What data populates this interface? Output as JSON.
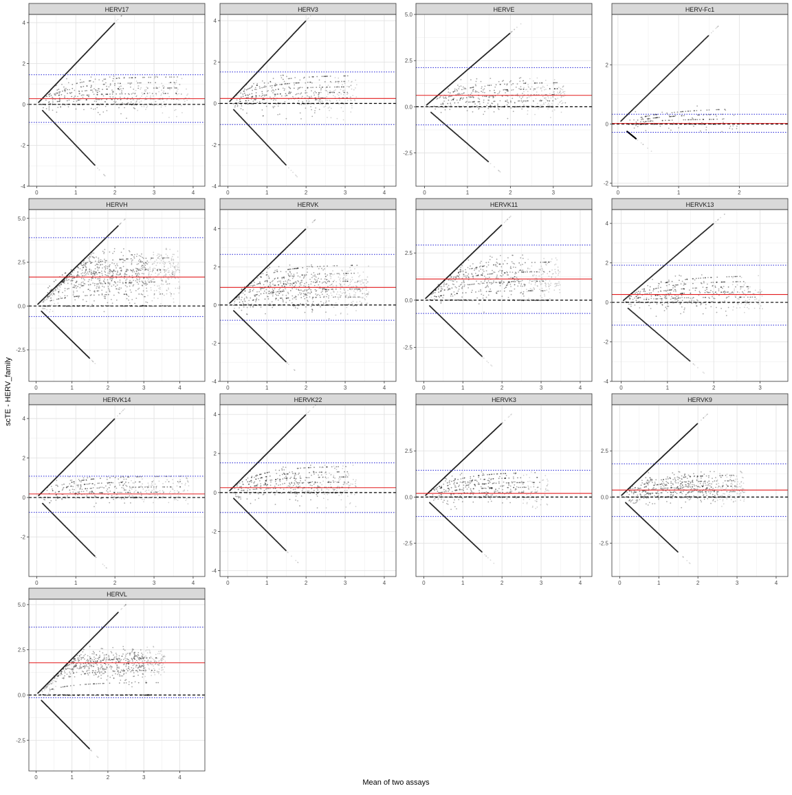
{
  "chart_data": {
    "type": "scatter",
    "xlabel": "Mean of two assays",
    "ylabel": "scTE - HERV_family",
    "colors": {
      "points": "#000000",
      "mean_line": "#e31a1c",
      "limits_line": "#1f1fd6",
      "zero_line": "#000000",
      "strip_fill": "#d9d9d9",
      "grid": "#ebebeb"
    },
    "grid": true,
    "panels": [
      {
        "title": "HERV17",
        "xlim": [
          -0.2,
          4.3
        ],
        "ylim": [
          -4.0,
          4.4
        ],
        "xticks": [
          0,
          1,
          2,
          3,
          4
        ],
        "yticks": [
          -4,
          -2,
          0,
          2,
          4
        ],
        "mean": 0.28,
        "upper_loa": 1.45,
        "lower_loa": -0.88,
        "diag_end": [
          2.0,
          4.0
        ],
        "neg_end": [
          1.5,
          -3.0
        ],
        "cloud": {
          "x0": 1.3,
          "y0": 0.4,
          "density": 1.0,
          "xmax": 3.9,
          "ymax": 1.4,
          "ymin": -0.7
        }
      },
      {
        "title": "HERV3",
        "xlim": [
          -0.2,
          4.3
        ],
        "ylim": [
          -4.0,
          4.3
        ],
        "xticks": [
          0,
          1,
          2,
          3,
          4
        ],
        "yticks": [
          -4,
          -2,
          0,
          2,
          4
        ],
        "mean": 0.24,
        "upper_loa": 1.52,
        "lower_loa": -1.02,
        "diag_end": [
          2.0,
          4.0
        ],
        "neg_end": [
          1.5,
          -3.0
        ],
        "cloud": {
          "x0": 1.2,
          "y0": 0.4,
          "density": 0.8,
          "xmax": 3.3,
          "ymax": 1.4,
          "ymin": -0.8
        }
      },
      {
        "title": "HERVE",
        "xlim": [
          -0.2,
          3.9
        ],
        "ylim": [
          -4.3,
          5.0
        ],
        "xticks": [
          0,
          1,
          2,
          3
        ],
        "yticks": [
          -2.5,
          0.0,
          2.5,
          5.0
        ],
        "mean": 0.62,
        "upper_loa": 2.12,
        "lower_loa": -0.98,
        "diag_end": [
          2.0,
          4.0
        ],
        "neg_end": [
          1.5,
          -3.0
        ],
        "cloud": {
          "x0": 1.1,
          "y0": 0.6,
          "density": 1.0,
          "xmax": 3.3,
          "ymax": 1.6,
          "ymin": -0.8
        }
      },
      {
        "title": "HERV-Fc1",
        "xlim": [
          -0.1,
          2.8
        ],
        "ylim": [
          -2.1,
          3.7
        ],
        "xticks": [
          0,
          1,
          2
        ],
        "yticks": [
          -2,
          0,
          2
        ],
        "mean": 0.02,
        "upper_loa": 0.33,
        "lower_loa": -0.28,
        "diag_end": [
          1.5,
          3.0
        ],
        "neg_end": [
          0.3,
          -0.5
        ],
        "cloud": {
          "x0": 0.8,
          "y0": 0.1,
          "density": 0.05,
          "xmax": 2.0,
          "ymax": 0.7,
          "ymin": -0.3
        }
      },
      {
        "title": "HERVH",
        "xlim": [
          -0.2,
          4.7
        ],
        "ylim": [
          -4.3,
          5.5
        ],
        "xticks": [
          0,
          1,
          2,
          3,
          4
        ],
        "yticks": [
          -2.5,
          0.0,
          2.5,
          5.0
        ],
        "mean": 1.65,
        "upper_loa": 3.9,
        "lower_loa": -0.6,
        "diag_end": [
          2.3,
          4.6
        ],
        "neg_end": [
          1.5,
          -3.0
        ],
        "cloud": {
          "x0": 1.9,
          "y0": 1.8,
          "density": 3.0,
          "xmax": 4.0,
          "ymax": 3.3,
          "ymin": -1.2
        }
      },
      {
        "title": "HERVK",
        "xlim": [
          -0.2,
          4.3
        ],
        "ylim": [
          -4.0,
          5.0
        ],
        "xticks": [
          0,
          1,
          2,
          3,
          4
        ],
        "yticks": [
          -4,
          -2,
          0,
          2,
          4
        ],
        "mean": 0.92,
        "upper_loa": 2.65,
        "lower_loa": -0.8,
        "diag_end": [
          2.0,
          4.0
        ],
        "neg_end": [
          1.5,
          -3.0
        ],
        "cloud": {
          "x0": 1.4,
          "y0": 0.9,
          "density": 2.0,
          "xmax": 3.6,
          "ymax": 2.1,
          "ymin": -0.9
        }
      },
      {
        "title": "HERVK11",
        "xlim": [
          -0.2,
          4.3
        ],
        "ylim": [
          -4.3,
          4.8
        ],
        "xticks": [
          0,
          1,
          2,
          3,
          4
        ],
        "yticks": [
          -2.5,
          0.0,
          2.5
        ],
        "mean": 1.12,
        "upper_loa": 2.92,
        "lower_loa": -0.7,
        "diag_end": [
          2.0,
          4.0
        ],
        "neg_end": [
          1.5,
          -3.0
        ],
        "cloud": {
          "x0": 1.4,
          "y0": 1.2,
          "density": 1.5,
          "xmax": 3.5,
          "ymax": 2.4,
          "ymin": -0.8
        }
      },
      {
        "title": "HERVK13",
        "xlim": [
          -0.2,
          3.6
        ],
        "ylim": [
          -4.0,
          4.7
        ],
        "xticks": [
          0,
          1,
          2,
          3
        ],
        "yticks": [
          -4,
          -2,
          0,
          2,
          4
        ],
        "mean": 0.4,
        "upper_loa": 1.88,
        "lower_loa": -1.15,
        "diag_end": [
          2.0,
          4.0
        ],
        "neg_end": [
          1.5,
          -3.0
        ],
        "cloud": {
          "x0": 1.2,
          "y0": 0.4,
          "density": 0.9,
          "xmax": 3.1,
          "ymax": 1.4,
          "ymin": -1.0
        }
      },
      {
        "title": "HERVK14",
        "xlim": [
          -0.2,
          4.3
        ],
        "ylim": [
          -4.0,
          4.7
        ],
        "xticks": [
          0,
          1,
          2,
          3,
          4
        ],
        "yticks": [
          -2,
          0,
          2,
          4
        ],
        "mean": 0.18,
        "upper_loa": 1.08,
        "lower_loa": -0.75,
        "diag_end": [
          2.0,
          4.0
        ],
        "neg_end": [
          1.5,
          -3.0
        ],
        "cloud": {
          "x0": 1.2,
          "y0": 0.4,
          "density": 0.8,
          "xmax": 3.9,
          "ymax": 1.1,
          "ymin": -0.5
        }
      },
      {
        "title": "HERVK22",
        "xlim": [
          -0.2,
          4.3
        ],
        "ylim": [
          -4.3,
          4.5
        ],
        "xticks": [
          0,
          1,
          2,
          3,
          4
        ],
        "yticks": [
          -4,
          -2,
          0,
          2,
          4
        ],
        "mean": 0.25,
        "upper_loa": 1.52,
        "lower_loa": -1.02,
        "diag_end": [
          2.0,
          4.0
        ],
        "neg_end": [
          1.5,
          -3.0
        ],
        "cloud": {
          "x0": 1.2,
          "y0": 0.4,
          "density": 0.9,
          "xmax": 3.3,
          "ymax": 1.4,
          "ymin": -0.8
        }
      },
      {
        "title": "HERVK3",
        "xlim": [
          -0.2,
          4.3
        ],
        "ylim": [
          -4.3,
          5.0
        ],
        "xticks": [
          0,
          1,
          2,
          3,
          4
        ],
        "yticks": [
          -2.5,
          0.0,
          2.5
        ],
        "mean": 0.2,
        "upper_loa": 1.45,
        "lower_loa": -1.05,
        "diag_end": [
          2.0,
          4.0
        ],
        "neg_end": [
          1.5,
          -3.0
        ],
        "cloud": {
          "x0": 1.2,
          "y0": 0.4,
          "density": 0.8,
          "xmax": 3.2,
          "ymax": 1.4,
          "ymin": -1.0
        }
      },
      {
        "title": "HERVK9",
        "xlim": [
          -0.2,
          4.3
        ],
        "ylim": [
          -4.3,
          5.0
        ],
        "xticks": [
          0,
          1,
          2,
          3,
          4
        ],
        "yticks": [
          -2.5,
          0.0,
          2.5
        ],
        "mean": 0.38,
        "upper_loa": 1.8,
        "lower_loa": -1.05,
        "diag_end": [
          2.0,
          4.0
        ],
        "neg_end": [
          1.5,
          -3.0
        ],
        "cloud": {
          "x0": 1.3,
          "y0": 0.5,
          "density": 1.6,
          "xmax": 3.2,
          "ymax": 1.4,
          "ymin": -1.0
        }
      },
      {
        "title": "HERVL",
        "xlim": [
          -0.2,
          4.7
        ],
        "ylim": [
          -4.2,
          5.3
        ],
        "xticks": [
          0,
          1,
          2,
          3,
          4
        ],
        "yticks": [
          -2.5,
          0.0,
          2.5,
          5.0
        ],
        "mean": 1.78,
        "upper_loa": 3.75,
        "lower_loa": -0.15,
        "diag_end": [
          2.3,
          4.6
        ],
        "neg_end": [
          1.5,
          -3.0
        ],
        "cloud": {
          "x0": 1.8,
          "y0": 1.8,
          "density": 2.2,
          "xmax": 3.6,
          "ymax": 2.7,
          "ymin": -0.6
        }
      }
    ]
  }
}
